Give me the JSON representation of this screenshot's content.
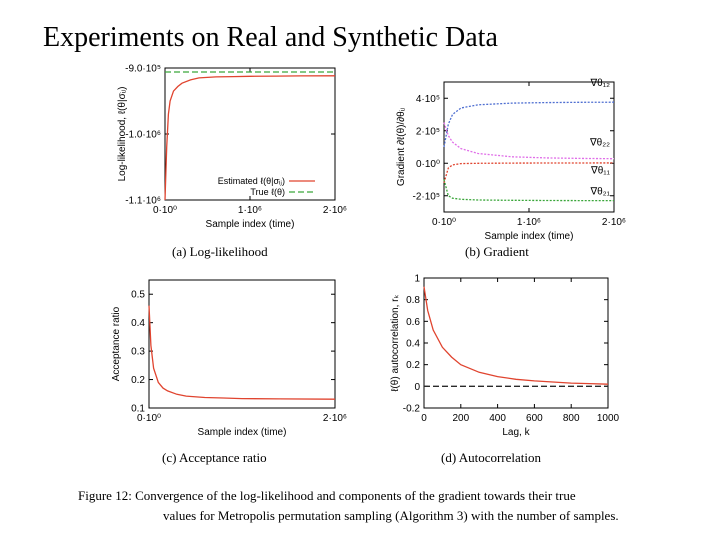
{
  "title": "Experiments on Real and Synthetic Data",
  "figure": {
    "label": "Figure 12:",
    "caption_line1": "Convergence of the log-likelihood and components of the gradient towards their true",
    "caption_line2": "values for Metropolis permutation sampling (Algorithm 3) with the number of samples."
  },
  "colors": {
    "red": "#e0442f",
    "green": "#3aa63a",
    "blue": "#4f6fd1",
    "magenta": "#e06ee8",
    "dark": "#2a2a2a"
  },
  "chart_data": [
    {
      "type": "line",
      "caption": "(a) Log-likelihood",
      "xlabel": "Sample index (time)",
      "ylabel": "Log-likelihood, ℓ(θ|σᵢⱼ)",
      "x_ticks": [
        "0·10⁰",
        "1·10⁶",
        "2·10⁶"
      ],
      "y_ticks": [
        "-9.0·10⁵",
        "-1.0·10⁶",
        "-1.1·10⁶"
      ],
      "xlim": [
        0,
        2000000
      ],
      "ylim": [
        -1100000,
        -900000
      ],
      "legend": [
        "Estimated ℓ(θ|σᵢⱼ)",
        "True ℓ(θ)"
      ],
      "series": [
        {
          "name": "Estimated",
          "color": "red",
          "x": [
            0,
            20000,
            40000,
            60000,
            100000,
            150000,
            200000,
            300000,
            400000,
            600000,
            800000,
            1000000,
            1300000,
            1600000,
            2000000
          ],
          "y": [
            -1100000,
            -1020000,
            -970000,
            -950000,
            -935000,
            -928000,
            -923000,
            -918000,
            -915000,
            -913500,
            -913000,
            -912500,
            -912200,
            -912000,
            -911800
          ]
        },
        {
          "name": "True",
          "color": "green",
          "x": [
            0,
            2000000
          ],
          "y": [
            -906000,
            -906000
          ]
        }
      ]
    },
    {
      "type": "line",
      "caption": "(b) Gradient",
      "xlabel": "Sample index (time)",
      "ylabel": "Gradient ∂ℓ(θ)/∂θᵢⱼ",
      "x_ticks": [
        "0·10⁰",
        "1·10⁶",
        "2·10⁶"
      ],
      "y_ticks": [
        "4·10⁵",
        "2·10⁵",
        "0·10⁰",
        "-2·10⁵"
      ],
      "xlim": [
        0,
        2000000
      ],
      "ylim": [
        -300000,
        500000
      ],
      "legend": [
        "∇θ₁₂",
        "∇θ₂₂",
        "∇θ₁₁",
        "∇θ₂₁"
      ],
      "series": [
        {
          "name": "∇θ₁₂",
          "color": "blue",
          "x": [
            0,
            50000,
            100000,
            200000,
            400000,
            800000,
            1200000,
            1600000,
            2000000
          ],
          "y": [
            100000,
            240000,
            300000,
            340000,
            360000,
            370000,
            373000,
            375000,
            376000
          ]
        },
        {
          "name": "∇θ₂₂",
          "color": "magenta",
          "x": [
            0,
            50000,
            100000,
            200000,
            400000,
            800000,
            1200000,
            1600000,
            2000000
          ],
          "y": [
            250000,
            170000,
            130000,
            90000,
            60000,
            40000,
            33000,
            30000,
            28000
          ]
        },
        {
          "name": "∇θ₁₁",
          "color": "red",
          "x": [
            0,
            50000,
            100000,
            200000,
            400000,
            800000,
            1200000,
            1600000,
            2000000
          ],
          "y": [
            -120000,
            -30000,
            -10000,
            -2000,
            0,
            1000,
            1500,
            1800,
            2000
          ]
        },
        {
          "name": "∇θ₂₁",
          "color": "green",
          "x": [
            0,
            50000,
            100000,
            200000,
            400000,
            800000,
            1200000,
            1600000,
            2000000
          ],
          "y": [
            -100000,
            -200000,
            -215000,
            -222000,
            -226000,
            -228000,
            -229000,
            -230000,
            -230000
          ]
        }
      ]
    },
    {
      "type": "line",
      "caption": "(c) Acceptance ratio",
      "xlabel": "Sample index (time)",
      "ylabel": "Acceptance ratio",
      "x_ticks": [
        "0·10⁰",
        "2·10⁶"
      ],
      "y_ticks": [
        "0.5",
        "0.4",
        "0.3",
        "0.2",
        "0.1"
      ],
      "xlim": [
        0,
        2000000
      ],
      "ylim": [
        0.1,
        0.55
      ],
      "series": [
        {
          "name": "Acceptance ratio",
          "color": "red",
          "x": [
            0,
            20000,
            50000,
            100000,
            150000,
            200000,
            300000,
            400000,
            600000,
            800000,
            1000000,
            1400000,
            2000000
          ],
          "y": [
            0.46,
            0.32,
            0.24,
            0.19,
            0.17,
            0.16,
            0.148,
            0.142,
            0.137,
            0.135,
            0.133,
            0.132,
            0.131
          ]
        }
      ]
    },
    {
      "type": "line",
      "caption": "(d) Autocorrelation",
      "xlabel": "Lag, k",
      "ylabel": "ℓ(θ) autocorrelation, rₖ",
      "x_ticks": [
        "0",
        "200",
        "400",
        "600",
        "800",
        "1000"
      ],
      "y_ticks": [
        "1",
        "0.8",
        "0.6",
        "0.4",
        "0.2",
        "0",
        "-0.2"
      ],
      "xlim": [
        0,
        1000
      ],
      "ylim": [
        -0.2,
        1.0
      ],
      "series": [
        {
          "name": "Autocorrelation",
          "color": "red",
          "x": [
            0,
            20,
            50,
            100,
            150,
            200,
            300,
            400,
            500,
            600,
            700,
            800,
            900,
            1000
          ],
          "y": [
            0.92,
            0.7,
            0.52,
            0.36,
            0.27,
            0.2,
            0.13,
            0.09,
            0.065,
            0.05,
            0.04,
            0.03,
            0.025,
            0.02
          ]
        },
        {
          "name": "Zero",
          "color": "dark",
          "x": [
            0,
            1000
          ],
          "y": [
            0,
            0
          ]
        }
      ]
    }
  ]
}
